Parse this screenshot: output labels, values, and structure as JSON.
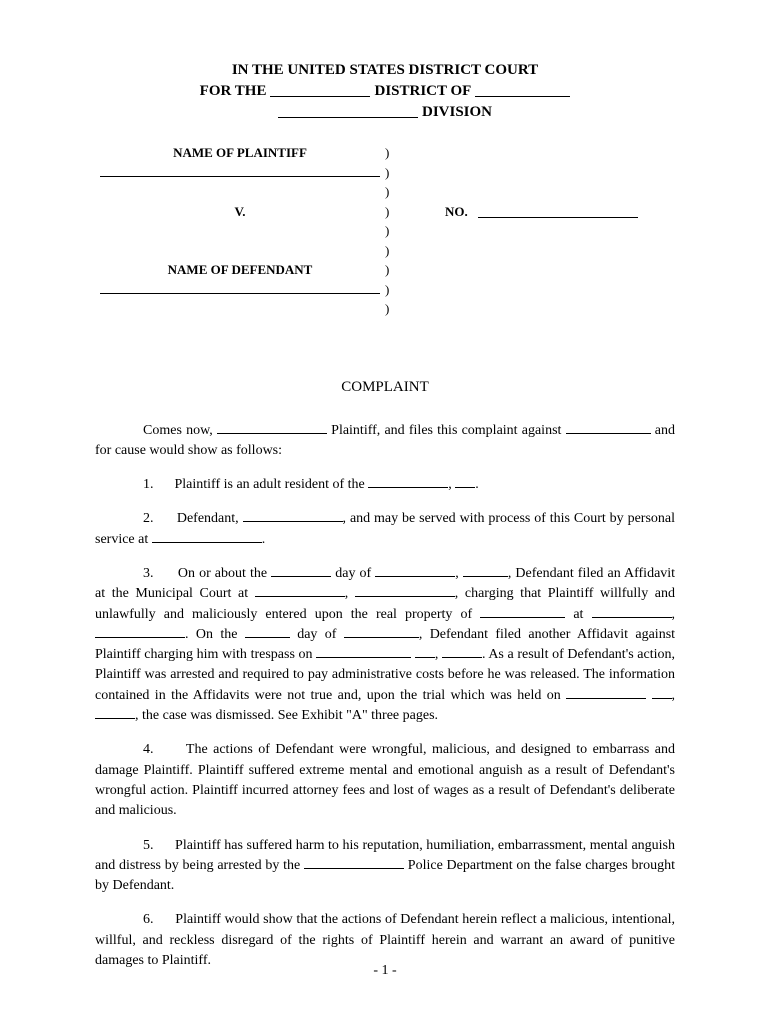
{
  "header": {
    "line1_a": "IN THE UNITED STATES DISTRICT COURT",
    "line2_a": "FOR THE",
    "line2_b": "DISTRICT OF",
    "line3_a": "DIVISION"
  },
  "caption": {
    "plaintiff_label": "NAME OF PLAINTIFF",
    "vs": "V.",
    "defendant_label": "NAME OF DEFENDANT",
    "no_label": "NO."
  },
  "title": "COMPLAINT",
  "body": {
    "intro_a": "Comes now,",
    "intro_b": "Plaintiff, and files this complaint against",
    "intro_c": "and for cause would show as follows:",
    "p1_num": "1.",
    "p1_a": "Plaintiff is an adult resident of the",
    "p1_b": ",",
    "p1_c": ".",
    "p2_num": "2.",
    "p2_a": "Defendant,",
    "p2_b": ", and may be served with process of this Court by personal service at",
    "p2_c": ".",
    "p3_num": "3.",
    "p3_a": "On or about the",
    "p3_b": "day of",
    "p3_c": ",",
    "p3_d": ", Defendant filed an Affidavit at the Municipal Court at",
    "p3_e": ",",
    "p3_f": ", charging that Plaintiff willfully and unlawfully and maliciously entered upon the real property of",
    "p3_g": "at",
    "p3_h": ",",
    "p3_i": ". On the",
    "p3_j": "day of",
    "p3_k": ", Defendant filed another Affidavit against Plaintiff charging him with trespass on",
    "p3_l": ",",
    "p3_m": ". As a result of Defendant's action, Plaintiff was arrested and required to pay administrative costs before he was released. The information contained in the Affidavits were not true and, upon the trial which was held on",
    "p3_n": ",",
    "p3_o": ", the case was dismissed. See Exhibit \"A\" three pages.",
    "p4_num": "4.",
    "p4": "The actions of Defendant were wrongful, malicious, and designed to embarrass and damage Plaintiff. Plaintiff suffered extreme mental and emotional anguish as a result of Defendant's wrongful action. Plaintiff incurred attorney fees and lost of wages as a result of Defendant's deliberate and malicious.",
    "p5_num": "5.",
    "p5_a": "Plaintiff has suffered harm to his reputation, humiliation, embarrassment, mental anguish and distress by being arrested by the",
    "p5_b": "Police Department on the false charges brought by Defendant.",
    "p6_num": "6.",
    "p6": "Plaintiff would show that the actions of Defendant herein reflect a malicious, intentional, willful, and reckless disregard of the rights of Plaintiff herein and warrant an award of punitive damages to Plaintiff."
  },
  "page_number": "- 1 -",
  "blanks": {
    "district1_w": 100,
    "district2_w": 95,
    "division_w": 140,
    "case_no_w": 160,
    "intro1_w": 110,
    "intro2_w": 85,
    "p1_city_w": 80,
    "p1_state_w": 20,
    "p2_name_w": 100,
    "p2_addr_w": 110,
    "p3_day_w": 60,
    "p3_month_w": 80,
    "p3_year_w": 45,
    "p3_court1_w": 90,
    "p3_court2_w": 100,
    "p3_prop_w": 85,
    "p3_at1_w": 80,
    "p3_at2_w": 90,
    "p3_day2_w": 45,
    "p3_month2_w": 75,
    "p3_tres1_w": 95,
    "p3_tres2_w": 20,
    "p3_tres3_w": 40,
    "p3_trial1_w": 80,
    "p3_trial2_w": 20,
    "p3_trial3_w": 40,
    "p5_dept_w": 100
  }
}
